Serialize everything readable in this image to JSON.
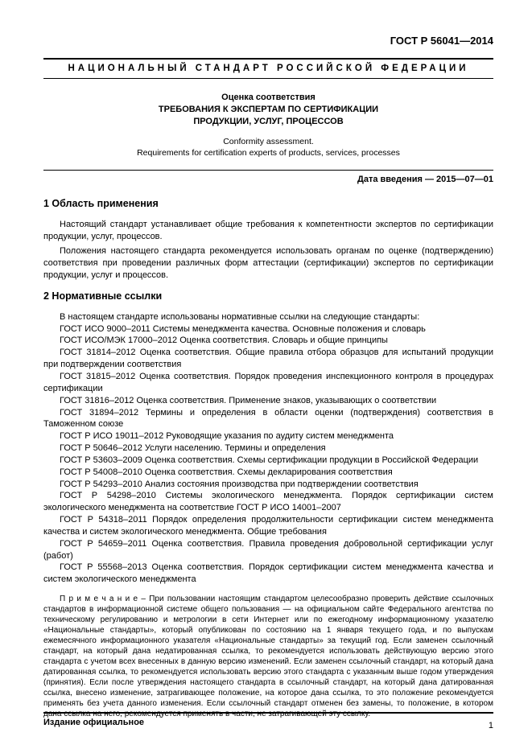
{
  "doc_id": "ГОСТ Р 56041—2014",
  "banner": "НАЦИОНАЛЬНЫЙ  СТАНДАРТ  РОССИЙСКОЙ  ФЕДЕРАЦИИ",
  "title_block": {
    "line1": "Оценка соответствия",
    "line2": "ТРЕБОВАНИЯ К ЭКСПЕРТАМ ПО СЕРТИФИКАЦИИ",
    "line3": "ПРОДУКЦИИ, УСЛУГ, ПРОЦЕССОВ"
  },
  "subtitle_en": {
    "line1": "Conformity assessment.",
    "line2": "Requirements for certification experts of products, services, processes"
  },
  "date_line": "Дата введения — 2015—07—01",
  "sections": {
    "s1": {
      "heading": "1 Область применения",
      "p1": "Настоящий стандарт устанавливает общие требования к компетентности экспертов по сертификации продукции, услуг, процессов.",
      "p2": "Положения настоящего стандарта рекомендуется использовать органам по оценке (подтверждению) соответствия при проведении различных форм аттестации (сертификации) экспертов по сертификации продукции, услуг и процессов."
    },
    "s2": {
      "heading": "2 Нормативные ссылки",
      "intro": "В настоящем стандарте использованы нормативные ссылки на следующие стандарты:",
      "refs": [
        "ГОСТ ИСО 9000–2011 Системы менеджмента качества. Основные положения и словарь",
        "ГОСТ ИСО/МЭК 17000–2012 Оценка соответствия. Словарь и общие принципы",
        "ГОСТ 31814–2012 Оценка соответствия. Общие правила отбора образцов для испытаний продукции при подтверждении соответствия",
        "ГОСТ 31815–2012 Оценка соответствия. Порядок проведения инспекционного контроля в процедурах сертификации",
        "ГОСТ 31816–2012 Оценка соответствия. Применение знаков, указывающих о соответствии",
        "ГОСТ 31894–2012 Термины и определения в области оценки (подтверждения) соответствия в Таможенном союзе",
        "ГОСТ Р ИСО 19011–2012 Руководящие указания по аудиту систем менеджмента",
        "ГОСТ Р 50646–2012 Услуги населению. Термины и определения",
        "ГОСТ Р 53603–2009 Оценка соответствия. Схемы сертификации продукции в Российской Федерации",
        "ГОСТ Р 54008–2010 Оценка соответствия. Схемы декларирования соответствия",
        "ГОСТ Р 54293–2010 Анализ состояния производства при подтверждении соответствия",
        "ГОСТ Р 54298–2010 Системы экологического менеджмента. Порядок сертификации систем экологического менеджмента на соответствие ГОСТ Р ИСО 14001–2007",
        "ГОСТ Р 54318–2011 Порядок определения продолжительности сертификации систем менеджмента качества и систем экологического менеджмента. Общие требования",
        "ГОСТ Р 54659–2011 Оценка соответствия. Правила проведения добровольной сертификации услуг (работ)",
        "ГОСТ Р 55568–2013 Оценка соответствия. Порядок сертификации систем менеджмента качества и систем экологического менеджмента"
      ],
      "note": "П р и м е ч а н и е – При пользовании настоящим стандартом целесообразно проверить действие ссылочных стандартов в информационной системе общего пользования — на официальном сайте Федерального агентства по техническому регулированию и метрологии в сети Интернет или по ежегодному информационному указателю «Национальные стандарты», который опубликован по состоянию на 1 января текущего года, и по выпускам ежемесячного информационного указателя «Национальные стандарты» за текущий год. Если заменен ссылочный стандарт, на который дана недатированная ссылка, то рекомендуется использовать действующую версию этого стандарта с учетом всех внесенных в данную версию изменений. Если заменен ссылочный стандарт, на который дана датированная ссылка, то рекомендуется использовать версию этого стандарта с указанным выше годом утверждения (принятия). Если после утверждения настоящего стандарта в ссылочный стандарт, на который дана датированная ссылка, внесено изменение, затрагивающее положение, на которое дана ссылка, то это положение рекомендуется применять без учета данного изменения. Если ссылочный стандарт отменен без замены, то положение, в котором дана ссылка на него, рекомендуется применять в части, не затрагивающей эту ссылку."
    }
  },
  "footer": {
    "official": "Издание официальное",
    "page": "1"
  }
}
